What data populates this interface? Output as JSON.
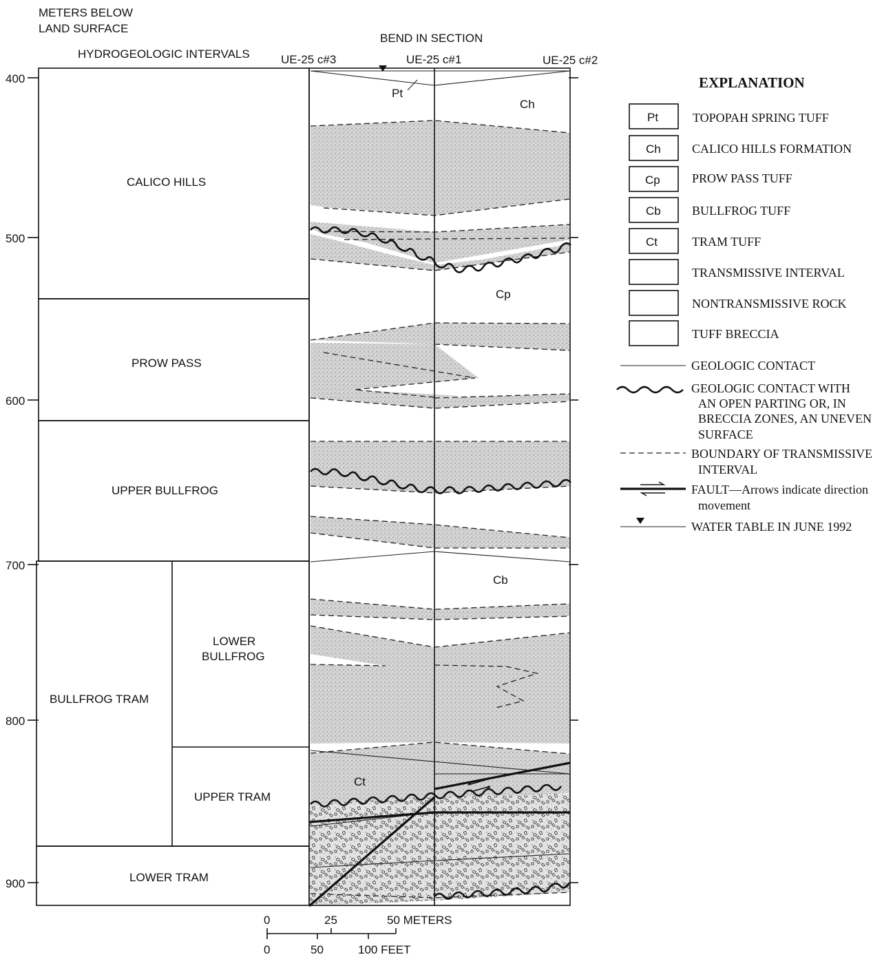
{
  "header": {
    "depth_axis_title_line1": "METERS BELOW",
    "depth_axis_title_line2": "LAND SURFACE",
    "intervals_title": "HYDROGEOLOGIC INTERVALS",
    "bend_label": "BEND IN SECTION",
    "wells": [
      "UE-25 c#3",
      "UE-25 c#1",
      "UE-25 c#2"
    ]
  },
  "depth_ticks": [
    "400",
    "500",
    "600",
    "700",
    "800",
    "900"
  ],
  "intervals": {
    "calico_hills": "CALICO HILLS",
    "prow_pass": "PROW PASS",
    "upper_bullfrog": "UPPER BULLFROG",
    "bullfrog_tram": "BULLFROG TRAM",
    "lower_bullfrog_line1": "LOWER",
    "lower_bullfrog_line2": "BULLFROG",
    "upper_tram": "UPPER TRAM",
    "lower_tram": "LOWER TRAM"
  },
  "section_labels": {
    "pt": "Pt",
    "ch": "Ch",
    "cp": "Cp",
    "cb": "Cb",
    "ct": "Ct"
  },
  "scale_bar": {
    "meters_ticks": [
      "0",
      "25",
      "50 METERS"
    ],
    "feet_ticks": [
      "0",
      "50",
      "100 FEET"
    ]
  },
  "explanation": {
    "title": "EXPLANATION",
    "units": [
      {
        "code": "Pt",
        "label": "TOPOPAH SPRING TUFF"
      },
      {
        "code": "Ch",
        "label": "CALICO HILLS FORMATION"
      },
      {
        "code": "Cp",
        "label": "PROW PASS TUFF"
      },
      {
        "code": "Cb",
        "label": "BULLFROG TUFF"
      },
      {
        "code": "Ct",
        "label": "TRAM TUFF"
      }
    ],
    "transmissive": "TRANSMISSIVE INTERVAL",
    "nontransmissive": "NONTRANSMISSIVE ROCK",
    "breccia": "TUFF BRECCIA",
    "geologic_contact": "GEOLOGIC CONTACT",
    "open_parting_lines": [
      "GEOLOGIC CONTACT WITH",
      "AN OPEN PARTING OR, IN",
      "BRECCIA ZONES, AN UNEVEN",
      "SURFACE"
    ],
    "boundary_lines": [
      "BOUNDARY OF TRANSMISSIVE",
      "INTERVAL"
    ],
    "fault_line1": "FAULT—Arrows indicate direction",
    "fault_line2": "movement",
    "water_table": "WATER TABLE IN JUNE 1992"
  },
  "colors": {
    "ink": "#111111",
    "stipple": "#bdbdbd",
    "background": "#ffffff"
  }
}
